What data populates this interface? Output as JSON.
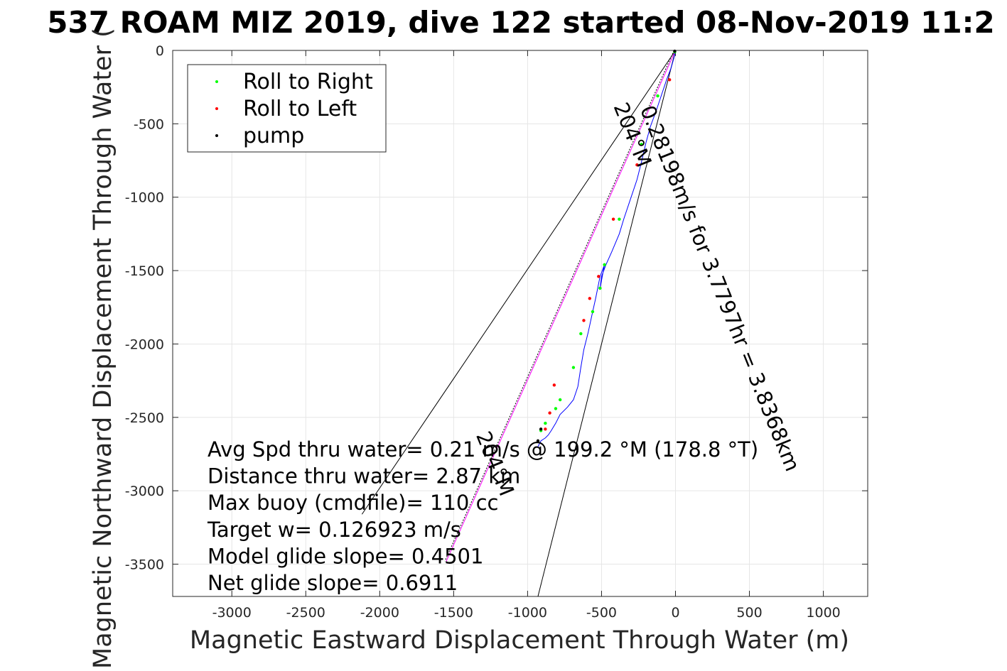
{
  "chart_data": {
    "type": "line",
    "title": "537 ROAM MIZ 2019, dive 122 started 08-Nov-2019 11:2",
    "xlabel": "Magnetic Eastward Displacement Through Water (m)",
    "ylabel": "Magnetic Northward Displacement Through Water (",
    "xlim": [
      -3400,
      1300
    ],
    "ylim": [
      -3720,
      0
    ],
    "xticks": [
      -3000,
      -2500,
      -2000,
      -1500,
      -1000,
      -500,
      0,
      500,
      1000
    ],
    "yticks": [
      0,
      -500,
      -1000,
      -1500,
      -2000,
      -2500,
      -3000,
      -3500
    ],
    "grid": true,
    "legend": {
      "position": "top-left",
      "entries": [
        {
          "label": "Roll to Right",
          "color": "#00ff00"
        },
        {
          "label": "Roll to Left",
          "color": "#ff0000"
        },
        {
          "label": "pump",
          "color": "#000000"
        }
      ]
    },
    "track": {
      "name": "",
      "color": "#0000ff",
      "x": [
        0,
        -10,
        -30,
        -60,
        -100,
        -130,
        -170,
        -200,
        -230,
        -260,
        -300,
        -350,
        -380,
        -430,
        -470,
        -500,
        -510,
        -480,
        -510,
        -540,
        -560,
        -590,
        -620,
        -640,
        -660,
        -690,
        -730,
        -780,
        -810,
        -840,
        -860,
        -880,
        -910,
        -930
      ],
      "y": [
        0,
        -50,
        -120,
        -200,
        -320,
        -410,
        -520,
        -630,
        -760,
        -880,
        -1000,
        -1150,
        -1250,
        -1370,
        -1460,
        -1540,
        -1620,
        -1460,
        -1540,
        -1690,
        -1780,
        -1920,
        -2040,
        -2160,
        -2290,
        -2380,
        -2430,
        -2480,
        -2540,
        -2590,
        -2620,
        -2640,
        -2660,
        -2700
      ]
    },
    "roll_right": {
      "x": [
        -5,
        -120,
        -230,
        -380,
        -480,
        -510,
        -560,
        -640,
        -690,
        -780,
        -810,
        -880,
        -910
      ],
      "y": [
        -10,
        -310,
        -640,
        -1150,
        -1460,
        -1620,
        -1780,
        -1930,
        -2160,
        -2380,
        -2440,
        -2540,
        -2590
      ]
    },
    "roll_left": {
      "x": [
        -40,
        -260,
        -420,
        -520,
        -580,
        -620,
        -820,
        -850,
        -880
      ],
      "y": [
        -200,
        -780,
        -1150,
        -1540,
        -1690,
        -1840,
        -2280,
        -2470,
        -2580
      ]
    },
    "pump": {
      "x": [
        -5,
        -910,
        -930
      ],
      "y": [
        -5,
        -2580,
        -2660
      ]
    },
    "heading_line": {
      "color": "#ff00ff",
      "x": [
        0,
        -1550
      ],
      "y": [
        0,
        -3480
      ]
    },
    "cone_lines": [
      {
        "x": [
          0,
          -2120
        ],
        "y": [
          0,
          -3160
        ]
      },
      {
        "x": [
          0,
          -930
        ],
        "y": [
          0,
          -3720
        ]
      }
    ],
    "rotated_labels": [
      {
        "text": "0.28198m/s for 3.7797hr = 3.8368km",
        "rotate": 68,
        "at": [
          -240,
          -400
        ]
      },
      {
        "text": "204°M",
        "rotate": 68,
        "at": [
          -420,
          -380
        ]
      },
      {
        "text": "204°M",
        "rotate": 68,
        "at": [
          -1350,
          -2620
        ]
      }
    ],
    "annotations": [
      "Avg Spd thru water=  0.21 m/s @ 199.2 °M (178.8 °T)",
      "Distance thru water=  2.87 km",
      "Max buoy (cmdfile)= 110 cc",
      "Target w= 0.126923 m/s",
      "Model glide slope= 0.4501",
      "Net glide slope= 0.6911"
    ]
  }
}
